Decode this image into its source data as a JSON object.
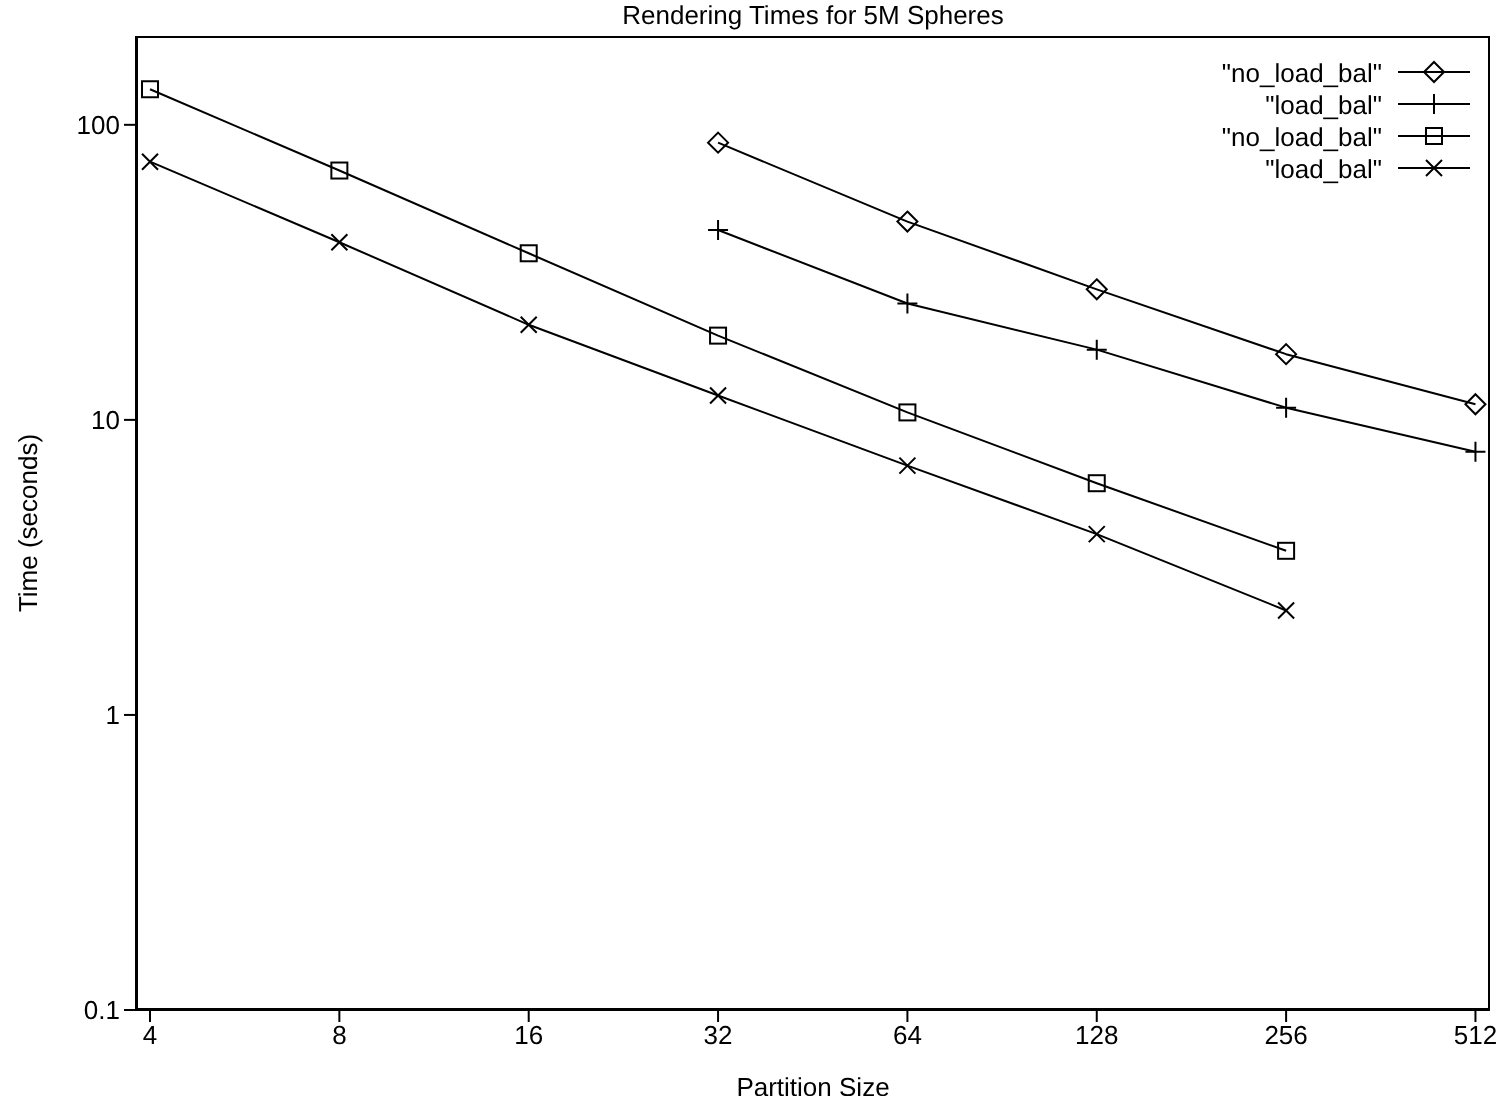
{
  "chart_data": {
    "type": "line",
    "title": "Rendering Times for 5M Spheres",
    "xlabel": "Partition Size",
    "ylabel": "Time (seconds)",
    "log": "xy",
    "xlim": [
      3.8,
      540
    ],
    "xticks": [
      4,
      8,
      16,
      32,
      64,
      128,
      256,
      512
    ],
    "ylim": [
      0.1,
      200
    ],
    "yticks": [
      0.1,
      1,
      10,
      100
    ],
    "grid": false,
    "legend": "top right",
    "line_style": "solid",
    "series": [
      {
        "name": "\"no_load_bal\"",
        "color": "#000000",
        "marker": "diamond",
        "x": [
          32,
          64,
          128,
          256,
          512
        ],
        "values": [
          87,
          47,
          27.7,
          16.7,
          11.3
        ]
      },
      {
        "name": "\"load_bal\"",
        "color": "#000000",
        "marker": "cross",
        "x": [
          32,
          64,
          128,
          256,
          512
        ],
        "values": [
          44,
          24.8,
          17.3,
          11,
          7.8
        ]
      },
      {
        "name": "\"no_load_bal\"",
        "color": "#000000",
        "marker": "square",
        "x": [
          4,
          8,
          16,
          32,
          64,
          128,
          256
        ],
        "values": [
          132,
          70,
          36.7,
          19.3,
          10.6,
          6.1,
          3.6
        ]
      },
      {
        "name": "\"load_bal\"",
        "color": "#000000",
        "marker": "x",
        "x": [
          4,
          8,
          16,
          32,
          64,
          128,
          256
        ],
        "values": [
          75,
          40,
          21,
          12.1,
          7,
          4.1,
          2.26
        ]
      }
    ]
  }
}
